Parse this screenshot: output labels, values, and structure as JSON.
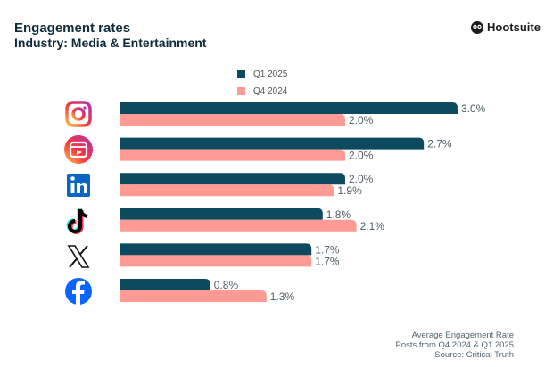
{
  "header": {
    "title": "Engagement rates",
    "subtitle": "Industry: Media & Entertainment",
    "logo_text": "Hootsuite"
  },
  "footer": {
    "lines": [
      "Average Engagement Rate",
      "Posts from Q4 2024 & Q1 2025",
      "Source: Critical Truth"
    ]
  },
  "chart_data": {
    "type": "bar",
    "orientation": "horizontal",
    "categories": [
      "Instagram",
      "Instagram Reels",
      "LinkedIn",
      "TikTok",
      "X",
      "Facebook"
    ],
    "category_icons": [
      "instagram-icon",
      "instagram-reels-icon",
      "linkedin-icon",
      "tiktok-icon",
      "x-icon",
      "facebook-icon"
    ],
    "series": [
      {
        "name": "Q1 2025",
        "color": "#0e4a5f",
        "values": [
          3.0,
          2.7,
          2.0,
          1.8,
          1.7,
          0.8
        ],
        "labels": [
          "3.0%",
          "2.7%",
          "2.0%",
          "1.8%",
          "1.7%",
          "0.8%"
        ]
      },
      {
        "name": "Q4 2024",
        "color": "#ff9a94",
        "values": [
          2.0,
          2.0,
          1.9,
          2.1,
          1.7,
          1.3
        ],
        "labels": [
          "2.0%",
          "2.0%",
          "1.9%",
          "2.1%",
          "1.7%",
          "1.3%"
        ]
      }
    ],
    "xlim": [
      0,
      3.0
    ],
    "grid": false,
    "legend_position": "top-center"
  }
}
